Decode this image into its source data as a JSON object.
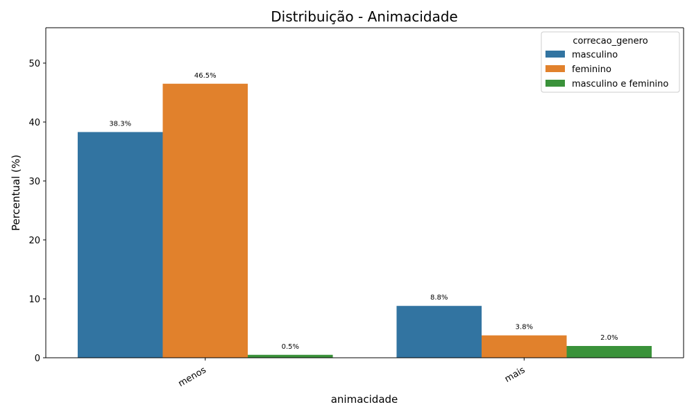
{
  "chart_data": {
    "type": "bar",
    "title": "Distribuição - Animacidade",
    "xlabel": "animacidade",
    "ylabel": "Percentual (%)",
    "categories": [
      "menos",
      "mais"
    ],
    "series": [
      {
        "name": "masculino",
        "values": [
          38.3,
          8.8
        ],
        "color": "#3274a1"
      },
      {
        "name": "feminino",
        "values": [
          46.5,
          3.8
        ],
        "color": "#e1812c"
      },
      {
        "name": "masculino e feminino",
        "values": [
          0.5,
          2.0
        ],
        "color": "#3a923a"
      }
    ],
    "data_labels": [
      [
        "38.3%",
        "8.8%"
      ],
      [
        "46.5%",
        "3.8%"
      ],
      [
        "0.5%",
        "2.0%"
      ]
    ],
    "ylim": [
      0,
      56
    ],
    "yticks": [
      0,
      10,
      20,
      30,
      40,
      50
    ],
    "legend": {
      "title": "correcao_genero",
      "position": "top-right"
    },
    "grid": false
  }
}
